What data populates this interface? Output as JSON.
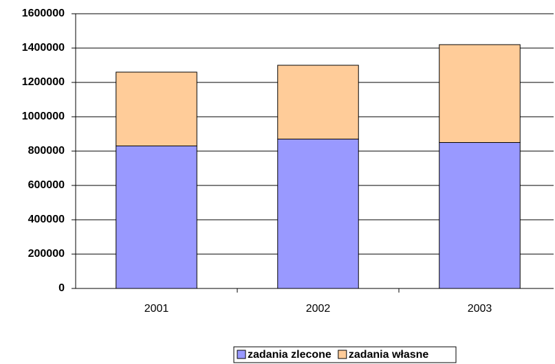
{
  "chart_data": {
    "type": "stacked_bar",
    "categories": [
      "2001",
      "2002",
      "2003"
    ],
    "series": [
      {
        "name": "zadania zlecone",
        "color": "#9999ff",
        "values": [
          830000,
          870000,
          850000
        ]
      },
      {
        "name": "zadania własne",
        "color": "#ffcc99",
        "values": [
          430000,
          430000,
          570000
        ]
      }
    ],
    "ylim": [
      0,
      1600000
    ],
    "yticks": [
      0,
      200000,
      400000,
      600000,
      800000,
      1000000,
      1200000,
      1400000,
      1600000
    ],
    "grid": true,
    "legend": "bottom"
  }
}
